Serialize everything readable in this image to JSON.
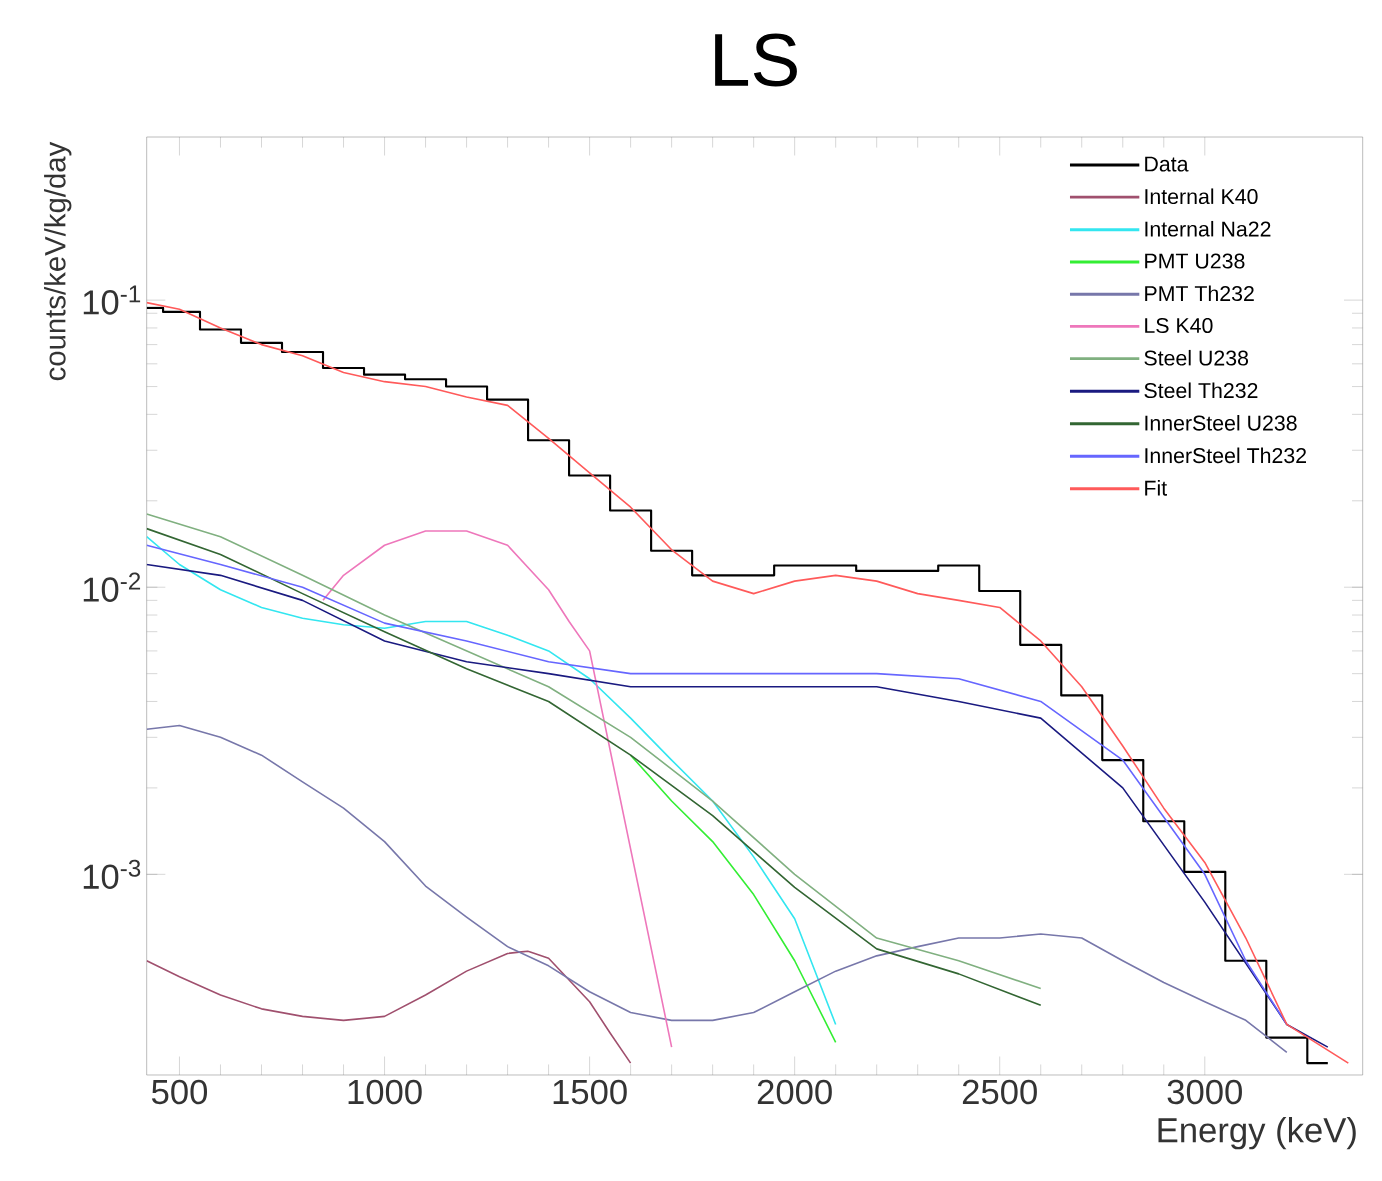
{
  "chart_data": {
    "type": "line",
    "title": "LS",
    "xlabel": "Energy (keV)",
    "ylabel": "counts/keV/kg/day",
    "log": "y",
    "legend": "top right",
    "xlim": [
      420,
      3385
    ],
    "ylim": [
      0.0002,
      0.37
    ],
    "xticks": [
      500,
      1000,
      1500,
      2000,
      2500,
      3000
    ],
    "yticks": [
      {
        "value": 0.001,
        "label": "10$^{-3}$"
      },
      {
        "value": 0.01,
        "label": "10$^{-2}$"
      },
      {
        "value": 0.1,
        "label": "10$^{-1}$"
      }
    ],
    "series": [
      {
        "name": "Data",
        "type": "step",
        "color": "#000000",
        "x": [
          420,
          500,
          600,
          700,
          800,
          900,
          1000,
          1100,
          1200,
          1300,
          1400,
          1500,
          1600,
          1700,
          1800,
          1900,
          2000,
          2100,
          2200,
          2300,
          2400,
          2500,
          2600,
          2700,
          2800,
          2900,
          3000,
          3100,
          3200,
          3300
        ],
        "values": [
          0.094,
          0.091,
          0.079,
          0.071,
          0.066,
          0.058,
          0.055,
          0.053,
          0.05,
          0.045,
          0.0325,
          0.0245,
          0.0185,
          0.0134,
          0.011,
          0.011,
          0.0119,
          0.0119,
          0.0114,
          0.0114,
          0.0119,
          0.0097,
          0.0063,
          0.0042,
          0.0025,
          0.00153,
          0.00102,
          0.0005,
          0.00027,
          0.00022
        ]
      },
      {
        "name": "Internal K40",
        "color": "#a0506e",
        "x": [
          420,
          500,
          600,
          700,
          800,
          900,
          1000,
          1100,
          1200,
          1300,
          1350,
          1400,
          1500,
          1550,
          1600
        ],
        "values": [
          0.0005,
          0.00044,
          0.00038,
          0.00034,
          0.00032,
          0.00031,
          0.00032,
          0.00038,
          0.00046,
          0.00053,
          0.00054,
          0.00051,
          0.00036,
          0.00028,
          0.00022
        ]
      },
      {
        "name": "Internal Na22",
        "color": "#33e6f0",
        "x": [
          420,
          500,
          600,
          700,
          800,
          900,
          1000,
          1100,
          1200,
          1300,
          1400,
          1500,
          1600,
          1700,
          1800,
          1900,
          2000,
          2100
        ],
        "values": [
          0.015,
          0.012,
          0.0098,
          0.0085,
          0.0078,
          0.0074,
          0.0072,
          0.0076,
          0.0076,
          0.0068,
          0.006,
          0.0048,
          0.0035,
          0.0025,
          0.0018,
          0.00115,
          0.0007,
          0.0003
        ]
      },
      {
        "name": "PMT U238",
        "color": "#33ee33",
        "x": [
          1600,
          1700,
          1800,
          1900,
          2000,
          2100
        ],
        "values": [
          0.0026,
          0.0018,
          0.0013,
          0.00085,
          0.0005,
          0.00026
        ]
      },
      {
        "name": "PMT Th232",
        "color": "#7777aa",
        "x": [
          420,
          500,
          600,
          700,
          800,
          900,
          1000,
          1100,
          1200,
          1300,
          1400,
          1500,
          1600,
          1700,
          1800,
          1900,
          2000,
          2100,
          2200,
          2300,
          2400,
          2500,
          2600,
          2700,
          2800,
          2900,
          3000,
          3100,
          3200
        ],
        "values": [
          0.0032,
          0.0033,
          0.003,
          0.0026,
          0.0021,
          0.0017,
          0.0013,
          0.00091,
          0.00071,
          0.00056,
          0.00048,
          0.00039,
          0.00033,
          0.00031,
          0.00031,
          0.00033,
          0.00039,
          0.00046,
          0.00052,
          0.00056,
          0.0006,
          0.0006,
          0.00062,
          0.0006,
          0.0005,
          0.00042,
          0.00036,
          0.00031,
          0.00024
        ]
      },
      {
        "name": "LS K40",
        "color": "#ee77bb",
        "x": [
          850,
          900,
          1000,
          1100,
          1200,
          1300,
          1400,
          1450,
          1500,
          1700
        ],
        "values": [
          0.009,
          0.011,
          0.014,
          0.0157,
          0.0157,
          0.014,
          0.0098,
          0.0076,
          0.006,
          0.00025
        ]
      },
      {
        "name": "Steel U238",
        "color": "#80b080",
        "x": [
          420,
          600,
          800,
          1000,
          1200,
          1400,
          1600,
          1800,
          2000,
          2200,
          2400,
          2600
        ],
        "values": [
          0.018,
          0.015,
          0.011,
          0.008,
          0.006,
          0.0045,
          0.003,
          0.0018,
          0.001,
          0.0006,
          0.0005,
          0.0004
        ]
      },
      {
        "name": "Steel Th232",
        "color": "#1a1a80",
        "x": [
          420,
          600,
          800,
          1000,
          1200,
          1400,
          1600,
          1800,
          2000,
          2200,
          2400,
          2600,
          2800,
          3000,
          3200,
          3300
        ],
        "values": [
          0.012,
          0.011,
          0.009,
          0.0065,
          0.0055,
          0.005,
          0.0045,
          0.0045,
          0.0045,
          0.0045,
          0.004,
          0.0035,
          0.002,
          0.0008,
          0.0003,
          0.00025
        ]
      },
      {
        "name": "InnerSteel U238",
        "color": "#336633",
        "x": [
          420,
          600,
          800,
          1000,
          1200,
          1400,
          1600,
          1800,
          2000,
          2200,
          2400,
          2600
        ],
        "values": [
          0.016,
          0.013,
          0.0095,
          0.007,
          0.0052,
          0.004,
          0.0026,
          0.0016,
          0.0009,
          0.00055,
          0.00045,
          0.00035
        ]
      },
      {
        "name": "InnerSteel Th232",
        "color": "#6666ff",
        "x": [
          420,
          600,
          800,
          1000,
          1200,
          1400,
          1600,
          1800,
          2000,
          2200,
          2400,
          2600,
          2800,
          3000,
          3100,
          3200
        ],
        "values": [
          0.014,
          0.012,
          0.01,
          0.0075,
          0.0065,
          0.0055,
          0.005,
          0.005,
          0.005,
          0.005,
          0.0048,
          0.004,
          0.0025,
          0.001,
          0.0005,
          0.0003
        ]
      },
      {
        "name": "Fit",
        "color": "#ff5a5a",
        "x": [
          420,
          500,
          600,
          700,
          800,
          900,
          1000,
          1100,
          1200,
          1300,
          1400,
          1500,
          1600,
          1700,
          1800,
          1900,
          2000,
          2100,
          2200,
          2300,
          2400,
          2500,
          2600,
          2700,
          2800,
          2900,
          3000,
          3100,
          3200,
          3350
        ],
        "values": [
          0.098,
          0.093,
          0.08,
          0.07,
          0.064,
          0.056,
          0.052,
          0.05,
          0.046,
          0.043,
          0.033,
          0.025,
          0.019,
          0.0135,
          0.0105,
          0.0095,
          0.0105,
          0.011,
          0.0105,
          0.0095,
          0.009,
          0.0085,
          0.0065,
          0.0045,
          0.0028,
          0.0017,
          0.0011,
          0.0006,
          0.0003,
          0.00022
        ]
      }
    ]
  }
}
